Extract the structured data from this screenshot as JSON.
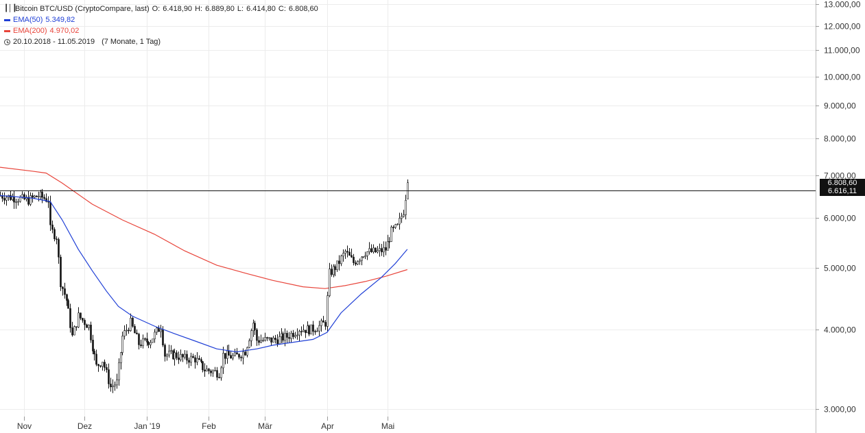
{
  "legend": {
    "instrument": "Bitcoin BTC/USD (CryptoCompare, last)",
    "open_label": "O:",
    "open": "6.418,90",
    "high_label": "H:",
    "high": "6.889,80",
    "low_label": "L:",
    "low": "6.414,80",
    "close_label": "C:",
    "close": "6.808,60",
    "ema50_label": "EMA(50)",
    "ema50_value": "5.349,82",
    "ema200_label": "EMA(200)",
    "ema200_value": "4.970,02",
    "range": "20.10.2018 - 11.05.2019",
    "span": "(7 Monate, 1 Tag)"
  },
  "price_tags": {
    "last": "6.808,60",
    "crosshair": "6.616,11"
  },
  "colors": {
    "ema50": "#1f3fd6",
    "ema200": "#e8443a",
    "candle": "#111111",
    "grid": "#ececec",
    "tag_bg": "#111111"
  },
  "chart_data": {
    "type": "line",
    "scale": "log",
    "ylim": [
      2950,
      13400
    ],
    "yticks": [
      3000,
      4000,
      5000,
      6000,
      7000,
      8000,
      9000,
      10000,
      11000,
      12000,
      13000
    ],
    "ytick_labels": [
      "3.000,00",
      "4.000,00",
      "5.000,00",
      "6.000,00",
      "7.000,00",
      "8.000,00",
      "9.000,00",
      "10.000,00",
      "11.000,00",
      "12.000,00",
      "13.000,00"
    ],
    "x_range": [
      "2018-10-20",
      "2019-05-11"
    ],
    "xtick_labels": [
      "Nov",
      "Dez",
      "Jan '19",
      "Feb",
      "Mär",
      "Apr",
      "Mai"
    ],
    "xtick_dates": [
      "2018-11-01",
      "2018-12-01",
      "2019-01-01",
      "2019-02-01",
      "2019-03-01",
      "2019-04-01",
      "2019-05-01"
    ],
    "crosshair_price": 6616.11,
    "price_path": [
      [
        "2018-10-20",
        6500
      ],
      [
        "2018-10-28",
        6440
      ],
      [
        "2018-11-03",
        6390
      ],
      [
        "2018-11-08",
        6500
      ],
      [
        "2018-11-13",
        6400
      ],
      [
        "2018-11-14",
        5750
      ],
      [
        "2018-11-17",
        5600
      ],
      [
        "2018-11-19",
        4750
      ],
      [
        "2018-11-22",
        4450
      ],
      [
        "2018-11-25",
        3900
      ],
      [
        "2018-11-28",
        4200
      ],
      [
        "2018-12-03",
        4050
      ],
      [
        "2018-12-07",
        3500
      ],
      [
        "2018-12-10",
        3580
      ],
      [
        "2018-12-14",
        3250
      ],
      [
        "2018-12-17",
        3300
      ],
      [
        "2018-12-20",
        3900
      ],
      [
        "2018-12-24",
        4100
      ],
      [
        "2018-12-28",
        3800
      ],
      [
        "2019-01-03",
        3850
      ],
      [
        "2019-01-08",
        4050
      ],
      [
        "2019-01-10",
        3650
      ],
      [
        "2019-01-15",
        3650
      ],
      [
        "2019-01-20",
        3600
      ],
      [
        "2019-01-25",
        3600
      ],
      [
        "2019-01-30",
        3460
      ],
      [
        "2019-02-06",
        3420
      ],
      [
        "2019-02-08",
        3650
      ],
      [
        "2019-02-14",
        3620
      ],
      [
        "2019-02-19",
        3700
      ],
      [
        "2019-02-23",
        4100
      ],
      [
        "2019-02-25",
        3850
      ],
      [
        "2019-03-05",
        3850
      ],
      [
        "2019-03-12",
        3900
      ],
      [
        "2019-03-18",
        4010
      ],
      [
        "2019-03-24",
        4000
      ],
      [
        "2019-03-28",
        4050
      ],
      [
        "2019-03-31",
        4100
      ],
      [
        "2019-04-02",
        4900
      ],
      [
        "2019-04-06",
        5050
      ],
      [
        "2019-04-10",
        5300
      ],
      [
        "2019-04-14",
        5100
      ],
      [
        "2019-04-20",
        5300
      ],
      [
        "2019-04-26",
        5300
      ],
      [
        "2019-04-30",
        5350
      ],
      [
        "2019-05-03",
        5700
      ],
      [
        "2019-05-06",
        5800
      ],
      [
        "2019-05-09",
        6150
      ],
      [
        "2019-05-11",
        6808.6
      ]
    ],
    "series": [
      {
        "name": "EMA(50)",
        "points": [
          [
            "2018-10-20",
            6500
          ],
          [
            "2018-11-05",
            6440
          ],
          [
            "2018-11-14",
            6360
          ],
          [
            "2018-11-20",
            5950
          ],
          [
            "2018-11-28",
            5350
          ],
          [
            "2018-12-05",
            4950
          ],
          [
            "2018-12-12",
            4600
          ],
          [
            "2018-12-18",
            4350
          ],
          [
            "2018-12-25",
            4200
          ],
          [
            "2019-01-05",
            4050
          ],
          [
            "2019-01-15",
            3940
          ],
          [
            "2019-01-25",
            3840
          ],
          [
            "2019-02-05",
            3730
          ],
          [
            "2019-02-15",
            3690
          ],
          [
            "2019-02-25",
            3730
          ],
          [
            "2019-03-05",
            3780
          ],
          [
            "2019-03-15",
            3820
          ],
          [
            "2019-03-25",
            3860
          ],
          [
            "2019-04-01",
            3960
          ],
          [
            "2019-04-08",
            4250
          ],
          [
            "2019-04-18",
            4550
          ],
          [
            "2019-04-28",
            4830
          ],
          [
            "2019-05-05",
            5080
          ],
          [
            "2019-05-11",
            5349.82
          ]
        ]
      },
      {
        "name": "EMA(200)",
        "points": [
          [
            "2018-10-20",
            7200
          ],
          [
            "2018-11-05",
            7100
          ],
          [
            "2018-11-12",
            7050
          ],
          [
            "2018-11-20",
            6800
          ],
          [
            "2018-12-05",
            6300
          ],
          [
            "2018-12-20",
            5950
          ],
          [
            "2019-01-05",
            5650
          ],
          [
            "2019-01-20",
            5320
          ],
          [
            "2019-02-05",
            5050
          ],
          [
            "2019-02-20",
            4900
          ],
          [
            "2019-03-05",
            4780
          ],
          [
            "2019-03-20",
            4670
          ],
          [
            "2019-03-31",
            4640
          ],
          [
            "2019-04-10",
            4690
          ],
          [
            "2019-04-20",
            4760
          ],
          [
            "2019-04-30",
            4850
          ],
          [
            "2019-05-11",
            4970.02
          ]
        ]
      }
    ]
  }
}
